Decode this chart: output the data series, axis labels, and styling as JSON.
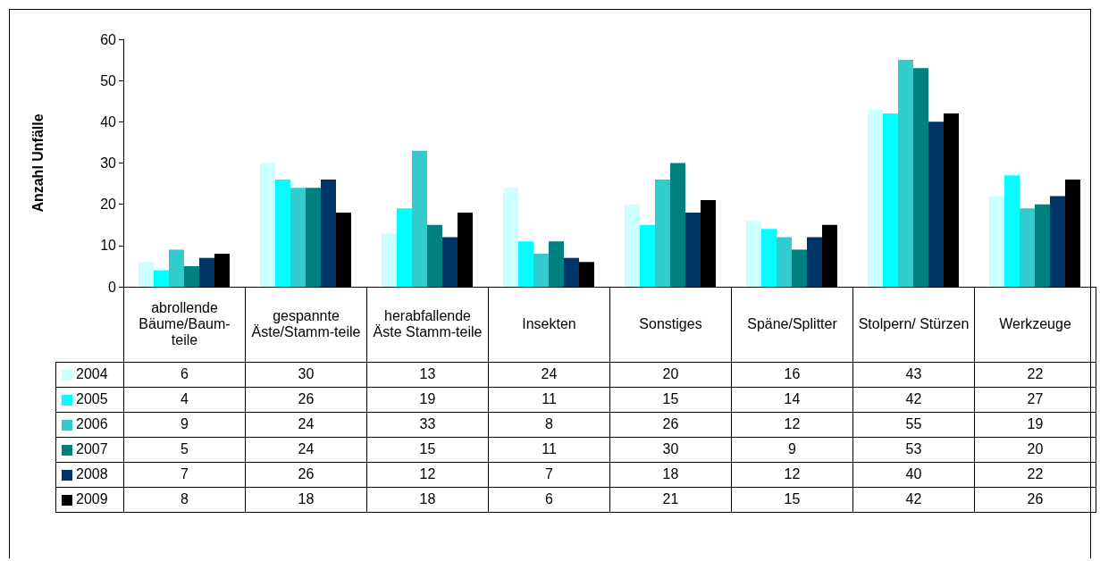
{
  "chart_data": {
    "type": "bar",
    "ylabel": "Anzahl Unfälle",
    "categories": [
      "abrollende Bäume/Baum-teile",
      "gespannte Äste/Stamm-teile",
      "herabfallende Äste Stamm-teile",
      "Insekten",
      "Sonstiges",
      "Späne/Splitter",
      "Stolpern/ Stürzen",
      "Werkzeuge"
    ],
    "series": [
      {
        "name": "2004",
        "color": "#ccffff",
        "values": [
          6,
          30,
          13,
          24,
          20,
          16,
          43,
          22
        ]
      },
      {
        "name": "2005",
        "color": "#00ffff",
        "values": [
          4,
          26,
          19,
          11,
          15,
          14,
          42,
          27
        ]
      },
      {
        "name": "2006",
        "color": "#33cccc",
        "values": [
          9,
          24,
          33,
          8,
          26,
          12,
          55,
          19
        ]
      },
      {
        "name": "2007",
        "color": "#008080",
        "values": [
          5,
          24,
          15,
          11,
          30,
          9,
          53,
          20
        ]
      },
      {
        "name": "2008",
        "color": "#003366",
        "values": [
          7,
          26,
          12,
          7,
          18,
          12,
          40,
          22
        ]
      },
      {
        "name": "2009",
        "color": "#000000",
        "values": [
          8,
          18,
          18,
          6,
          21,
          15,
          42,
          26
        ]
      }
    ],
    "ylim": [
      0,
      60
    ],
    "yticks": [
      0,
      10,
      20,
      30,
      40,
      50,
      60
    ],
    "grid": false,
    "legend": "bottom left",
    "data_labels": true
  }
}
